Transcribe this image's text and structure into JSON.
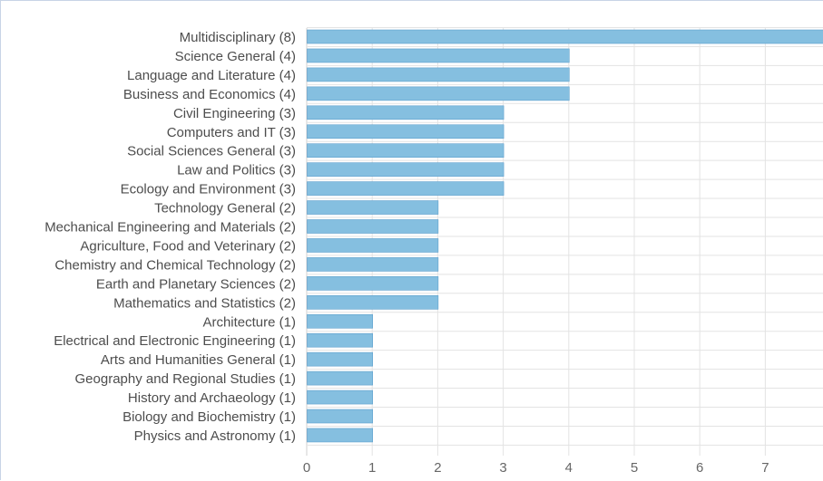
{
  "chart_data": {
    "type": "bar",
    "orientation": "horizontal",
    "categories": [
      "Multidisciplinary (8)",
      "Science General (4)",
      "Language and Literature (4)",
      "Business and Economics (4)",
      "Civil Engineering (3)",
      "Computers and IT (3)",
      "Social Sciences General (3)",
      "Law and Politics (3)",
      "Ecology and Environment (3)",
      "Technology General (2)",
      "Mechanical Engineering and Materials (2)",
      "Agriculture, Food and Veterinary (2)",
      "Chemistry and Chemical Technology (2)",
      "Earth and Planetary Sciences (2)",
      "Mathematics and Statistics (2)",
      "Architecture (1)",
      "Electrical and Electronic Engineering (1)",
      "Arts and Humanities General (1)",
      "Geography and Regional Studies (1)",
      "History and Archaeology (1)",
      "Biology and Biochemistry (1)",
      "Physics and Astronomy (1)"
    ],
    "values": [
      8,
      4,
      4,
      4,
      3,
      3,
      3,
      3,
      3,
      2,
      2,
      2,
      2,
      2,
      2,
      1,
      1,
      1,
      1,
      1,
      1,
      1
    ],
    "x_ticks": [
      "0",
      "1",
      "2",
      "3",
      "4",
      "5",
      "6",
      "7"
    ],
    "xlim": [
      0,
      8
    ],
    "grid": true,
    "legend": "none",
    "title": "",
    "xlabel": "",
    "ylabel": "",
    "colors": {
      "bar_fill": "#85bfe0",
      "bar_stroke": "#5d9fcc",
      "grid": "#e3e3e3",
      "label_text": "#4d4d4d"
    }
  }
}
